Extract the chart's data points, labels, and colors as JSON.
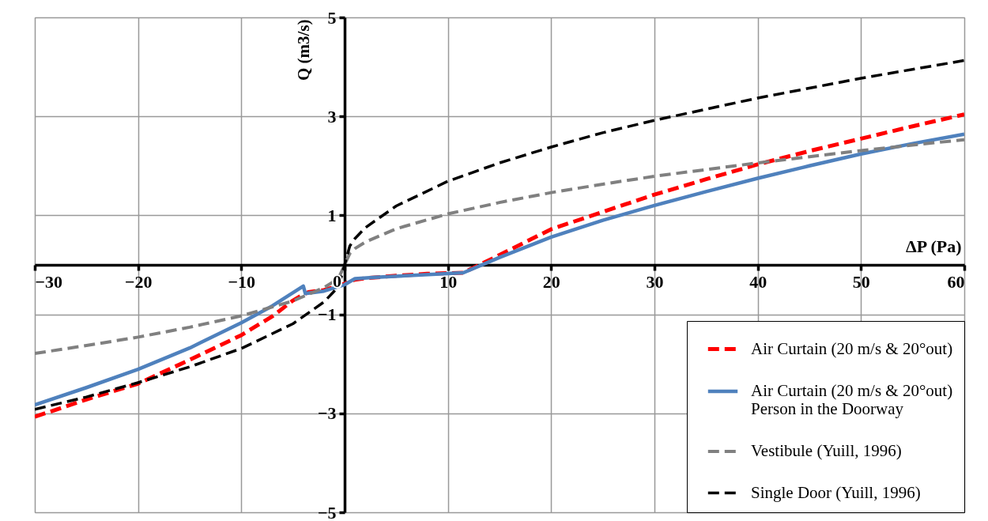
{
  "chart_data": {
    "type": "line",
    "xlabel": "ΔP (Pa)",
    "ylabel": "Q (m3/s)",
    "xlim": [
      -30,
      60
    ],
    "xticks": [
      -30,
      -20,
      -10,
      0,
      10,
      20,
      30,
      40,
      50,
      60
    ],
    "ylim": [
      -5,
      5
    ],
    "yticks": [
      -5,
      -3,
      -1,
      1,
      3,
      5
    ],
    "grid": true,
    "legend": "bottom right",
    "marker": "none",
    "series": [
      {
        "name": "Air Curtain (20 m/s & 20°out)",
        "color": "#ff0000",
        "line_style": "dashed",
        "x": [
          -30,
          -25,
          -20,
          -15,
          -10,
          -7,
          -5,
          -4,
          -3.5,
          -2,
          0,
          1,
          2,
          5,
          8,
          11.5,
          15,
          20,
          25,
          30,
          35,
          40,
          45,
          50,
          55,
          60
        ],
        "values": [
          -3.07,
          -2.72,
          -2.4,
          -1.92,
          -1.42,
          -1.04,
          -0.72,
          -0.6,
          -0.55,
          -0.51,
          -0.38,
          -0.3,
          -0.27,
          -0.22,
          -0.18,
          -0.16,
          0.2,
          0.72,
          1.07,
          1.42,
          1.73,
          2.03,
          2.3,
          2.55,
          2.8,
          3.04
        ]
      },
      {
        "name": "Air Curtain (20 m/s & 20°out)\nPerson in the Doorway",
        "color": "#4f81bd",
        "line_style": "solid",
        "x": [
          -30,
          -25,
          -20,
          -15,
          -10,
          -7,
          -4,
          -3.8,
          -2,
          0,
          1,
          3,
          11.5,
          15,
          20,
          25,
          30,
          35,
          40,
          45,
          50,
          55,
          60
        ],
        "values": [
          -2.83,
          -2.48,
          -2.11,
          -1.68,
          -1.17,
          -0.83,
          -0.43,
          -0.58,
          -0.53,
          -0.4,
          -0.28,
          -0.25,
          -0.16,
          0.15,
          0.56,
          0.9,
          1.2,
          1.48,
          1.75,
          2.0,
          2.24,
          2.45,
          2.64
        ]
      },
      {
        "name": "Vestibule (Yuill, 1996)",
        "color": "#808080",
        "line_style": "dashed",
        "x": [
          -30,
          -25,
          -20,
          -15,
          -10,
          -5,
          -2,
          -1,
          -0.5,
          0,
          0.5,
          1,
          2,
          5,
          10,
          15,
          20,
          25,
          30,
          40,
          50,
          60
        ],
        "values": [
          -1.79,
          -1.63,
          -1.46,
          -1.26,
          -1.03,
          -0.73,
          -0.46,
          -0.33,
          -0.23,
          0,
          0.23,
          0.33,
          0.46,
          0.73,
          1.03,
          1.26,
          1.46,
          1.63,
          1.79,
          2.06,
          2.31,
          2.53
        ]
      },
      {
        "name": "Single Door (Yuill, 1996)",
        "color": "#000000",
        "line_style": "dashed",
        "x": [
          -30,
          -25,
          -20,
          -15,
          -10,
          -5,
          -2,
          -1,
          -0.5,
          0,
          0.5,
          1,
          2,
          5,
          10,
          15,
          20,
          25,
          30,
          40,
          50,
          60
        ],
        "values": [
          -2.92,
          -2.67,
          -2.38,
          -2.06,
          -1.69,
          -1.19,
          -0.75,
          -0.53,
          -0.38,
          0,
          0.38,
          0.53,
          0.75,
          1.19,
          1.69,
          2.06,
          2.38,
          2.67,
          2.92,
          3.37,
          3.77,
          4.13
        ]
      }
    ]
  }
}
